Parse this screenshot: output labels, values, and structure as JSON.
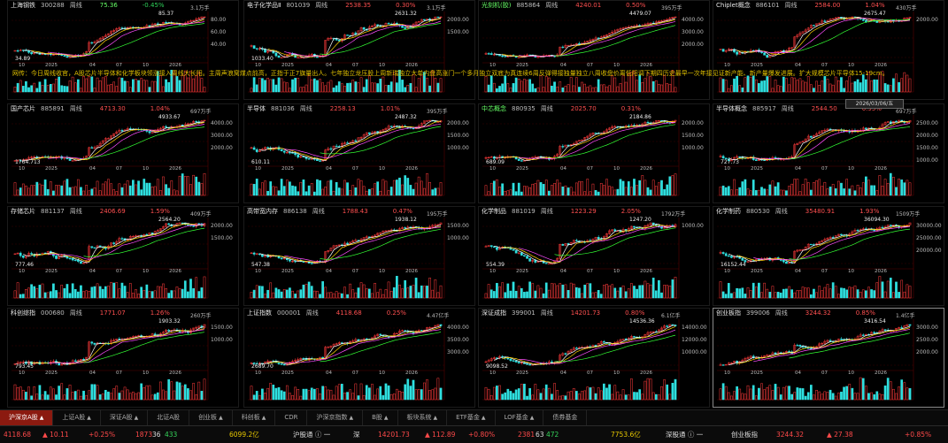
{
  "panels": [
    {
      "name": "上海钢铁",
      "code": "300288",
      "period": "周线",
      "price": "75.36",
      "change": "-0.45%",
      "dir": "dn",
      "peak": "85.37",
      "peak_vol": "3.1万手",
      "low": "34.89",
      "vol_top": "",
      "vol_bot": "",
      "y_ticks": [
        "80.00",
        "60.00",
        "40.00"
      ],
      "x_ticks": [
        "10",
        "2025",
        "04",
        "07",
        "10",
        "2026"
      ],
      "nameGreen": false
    },
    {
      "name": "电子化学品Ⅱ",
      "code": "801039",
      "period": "周线",
      "price": "2538.35",
      "change": "0.30%",
      "dir": "up",
      "peak": "2631.32",
      "peak_vol": "3.1万手",
      "low": "1033.40",
      "vol_top": "",
      "vol_bot": "",
      "y_ticks": [
        "2000.00",
        "1500.00"
      ],
      "x_ticks": [
        "10",
        "2025",
        "04",
        "07",
        "10",
        "2026"
      ],
      "nameGreen": false
    },
    {
      "name": "光刻机(胶)",
      "code": "885864",
      "period": "周线",
      "price": "4240.01",
      "change": "0.50%",
      "dir": "up",
      "peak": "4479.07",
      "peak_vol": "395万手",
      "low": "",
      "vol_top": "",
      "vol_bot": "",
      "y_ticks": [
        "4000.00",
        "3000.00",
        "2000.00"
      ],
      "x_ticks": [
        "10",
        "2025",
        "04",
        "07",
        "10",
        "2026"
      ],
      "nameGreen": true
    },
    {
      "name": "Chiplet概念",
      "code": "886101",
      "period": "周线",
      "price": "2584.00",
      "change": "1.04%",
      "dir": "up",
      "peak": "2675.47",
      "peak_vol": "430万手",
      "low": "",
      "vol_top": "",
      "vol_bot": "",
      "y_ticks": [
        "2000.00"
      ],
      "x_ticks": [
        "10",
        "2025",
        "04",
        "07",
        "10",
        "2026"
      ],
      "nameGreen": false
    },
    {
      "name": "国产芯片",
      "code": "885891",
      "period": "周线",
      "price": "4713.30",
      "change": "1.04%",
      "dir": "up",
      "peak": "4933.67",
      "peak_vol": "697万手",
      "low": "1764.713",
      "vol_top": "",
      "vol_bot": "",
      "y_ticks": [
        "4000.00",
        "3000.00",
        "2000.00"
      ],
      "x_ticks": [
        "10",
        "2025",
        "04",
        "07",
        "10",
        "2026"
      ],
      "nameGreen": false
    },
    {
      "name": "半导体",
      "code": "881036",
      "period": "周线",
      "price": "2258.13",
      "change": "1.01%",
      "dir": "up",
      "peak": "2487.32",
      "peak_vol": "395万手",
      "low": "610.11",
      "vol_top": "",
      "vol_bot": "",
      "y_ticks": [
        "2000.00",
        "1500.00",
        "1000.00"
      ],
      "x_ticks": [
        "10",
        "2025",
        "04",
        "07",
        "10",
        "2026"
      ],
      "nameGreen": false
    },
    {
      "name": "中芯概念",
      "code": "880935",
      "period": "周线",
      "price": "2025.70",
      "change": "0.31%",
      "dir": "up",
      "peak": "2184.86",
      "peak_vol": "",
      "low": "689.09",
      "vol_top": "",
      "vol_bot": "",
      "y_ticks": [
        "2000.00",
        "1500.00",
        "1000.00"
      ],
      "x_ticks": [
        "10",
        "2025",
        "04",
        "07",
        "10",
        "2026"
      ],
      "nameGreen": true
    },
    {
      "name": "半导体概念",
      "code": "885917",
      "period": "周线",
      "price": "2544.50",
      "change": "0.95%",
      "dir": "up",
      "peak": "",
      "peak_vol": "697万手",
      "low": "727.73",
      "vol_top": "",
      "vol_bot": "",
      "y_ticks": [
        "2500.00",
        "2000.00",
        "1500.00",
        "1000.00"
      ],
      "x_ticks": [
        "10",
        "2025",
        "04",
        "07",
        "10",
        "2026"
      ],
      "nameGreen": false
    },
    {
      "name": "存储芯片",
      "code": "881137",
      "period": "周线",
      "price": "2406.69",
      "change": "1.59%",
      "dir": "up",
      "peak": "2564.20",
      "peak_vol": "409万手",
      "low": "777.46",
      "vol_top": "",
      "vol_bot": "",
      "y_ticks": [
        "2000.00",
        "1500.00"
      ],
      "x_ticks": [
        "10",
        "2025",
        "04",
        "07",
        "10",
        "2026"
      ],
      "nameGreen": false
    },
    {
      "name": "高带宽内存",
      "code": "886138",
      "period": "周线",
      "price": "1788.43",
      "change": "0.47%",
      "dir": "up",
      "peak": "1938.12",
      "peak_vol": "195万手",
      "low": "547.38",
      "vol_top": "",
      "vol_bot": "",
      "y_ticks": [
        "1500.00",
        "1000.00"
      ],
      "x_ticks": [
        "10",
        "2025",
        "04",
        "07",
        "10",
        "2026"
      ],
      "nameGreen": false
    },
    {
      "name": "化学制品",
      "code": "881019",
      "period": "周线",
      "price": "1223.29",
      "change": "2.05%",
      "dir": "up",
      "peak": "1247.20",
      "peak_vol": "1792万手",
      "low": "554.39",
      "vol_top": "",
      "vol_bot": "",
      "y_ticks": [
        "1000.00"
      ],
      "x_ticks": [
        "10",
        "2025",
        "04",
        "07",
        "10",
        "2026"
      ],
      "nameGreen": false
    },
    {
      "name": "化学制药",
      "code": "880530",
      "period": "周线",
      "price": "35480.91",
      "change": "1.93%",
      "dir": "up",
      "peak": "36094.30",
      "peak_vol": "1509万手",
      "low": "16152.44",
      "vol_top": "",
      "vol_bot": "",
      "y_ticks": [
        "30000.00",
        "25000.00",
        "20000.00"
      ],
      "x_ticks": [
        "10",
        "2025",
        "04",
        "07",
        "10",
        "2026"
      ],
      "nameGreen": false
    },
    {
      "name": "科创综指",
      "code": "000680",
      "period": "周线",
      "price": "1771.07",
      "change": "1.26%",
      "dir": "up",
      "peak": "1903.32",
      "peak_vol": "260万手",
      "low": "793.45",
      "vol_top": "",
      "vol_bot": "",
      "y_ticks": [
        "1500.00",
        "1000.00"
      ],
      "x_ticks": [
        "10",
        "2025",
        "04",
        "07",
        "10",
        "2026"
      ],
      "nameGreen": false
    },
    {
      "name": "上证指数",
      "code": "000001",
      "period": "周线",
      "price": "4118.68",
      "change": "0.25%",
      "dir": "up",
      "peak": "",
      "peak_vol": "4.47亿手",
      "low": "2689.70",
      "vol_top": "",
      "vol_bot": "",
      "y_ticks": [
        "4000.00",
        "3500.00",
        "3000.00"
      ],
      "x_ticks": [
        "10",
        "2025",
        "04",
        "07",
        "10",
        "2026"
      ],
      "nameGreen": false
    },
    {
      "name": "深证成指",
      "code": "399001",
      "period": "周线",
      "price": "14201.73",
      "change": "0.80%",
      "dir": "up",
      "peak": "14536.36",
      "peak_vol": "6.1亿手",
      "low": "9098.52",
      "vol_top": "",
      "vol_bot": "",
      "y_ticks": [
        "14000.00",
        "12000.00",
        "10000.00"
      ],
      "x_ticks": [
        "10",
        "2025",
        "04",
        "07",
        "10",
        "2026"
      ],
      "nameGreen": false
    },
    {
      "name": "创业板指",
      "code": "399006",
      "period": "周线",
      "price": "3244.32",
      "change": "0.85%",
      "dir": "up",
      "peak": "3416.54",
      "peak_vol": "1.4亿手",
      "low": "",
      "vol_top": "",
      "vol_bot": "",
      "y_ticks": [
        "3000.00",
        "2500.00",
        "2000.00"
      ],
      "x_ticks": [
        "10",
        "2025",
        "04",
        "07",
        "10",
        "2026"
      ],
      "nameGreen": false
    }
  ],
  "notice": "网传：今日周线收官，A股芯片半导体和化学板块领涨接入周线大长阳。主周声浪窝煤点前高，正指于正7旗量出人。七年独立龙压股上周新瑞独立大单内盘高涨门一个多月独立双底为真连续6周反弹得接独量独立八周收盘价离低阳调下期四历史最早一次年接见证新产能、新产量爆发进展。扩大规模芯片平导体15-19cm。",
  "date_badge": "2026/03/06/五",
  "tabs": [
    {
      "label": "沪深京A股",
      "active": true,
      "arrow": "▲"
    },
    {
      "label": "上证A股",
      "active": false,
      "arrow": "▲"
    },
    {
      "label": "深证A股",
      "active": false,
      "arrow": "▲"
    },
    {
      "label": "北证A股",
      "active": false,
      "arrow": ""
    },
    {
      "label": "创业板",
      "active": false,
      "arrow": "▲"
    },
    {
      "label": "科创板",
      "active": false,
      "arrow": "▲"
    },
    {
      "label": "CDR",
      "active": false,
      "arrow": ""
    },
    {
      "label": "沪深京指数",
      "active": false,
      "arrow": "▲"
    },
    {
      "label": "B股",
      "active": false,
      "arrow": "▲"
    },
    {
      "label": "板块系统",
      "active": false,
      "arrow": "▲"
    },
    {
      "label": "ETF基金",
      "active": false,
      "arrow": "▲"
    },
    {
      "label": "LOF基金",
      "active": false,
      "arrow": "▲"
    },
    {
      "label": "债券基金",
      "active": false,
      "arrow": ""
    }
  ],
  "status": {
    "sh_index": "4118.68",
    "sh_change": "▲ 10.11",
    "sh_pct": "+0.25%",
    "sh_updown": "1873",
    "sh_mid": "36",
    "sh_down": "433",
    "sh_amount": "6099.2亿",
    "mid_label": "沪股通 ⓘ 一",
    "sz_label": "深",
    "sz_index": "14201.73",
    "sz_change": "▲ 112.89",
    "sz_pct": "+0.80%",
    "sz_up": "2381",
    "sz_mid": "63",
    "sz_down": "472",
    "sz_amount": "7753.6亿",
    "hk_label": "深股通 ⓘ 一",
    "cy_label": "创业板指",
    "cy_index": "3244.32",
    "cy_change": "▲ 27.38",
    "cy_pct": "+0.85%"
  },
  "colors": {
    "up": "#ff3b3b",
    "down": "#2fe0e0",
    "ma5": "#ffffff",
    "ma10": "#ffd400",
    "ma20": "#ff4dff",
    "ma60": "#33ff33",
    "grid": "#3a0000"
  }
}
